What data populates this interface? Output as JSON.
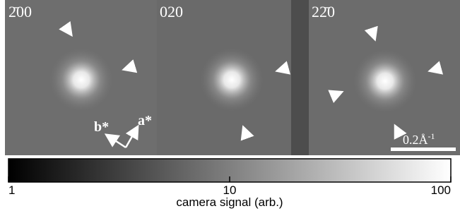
{
  "panels": [
    {
      "label": "2̄00"
    },
    {
      "label": "020"
    },
    {
      "label": "22̄0"
    }
  ],
  "axes": {
    "b": "b*",
    "a": "a*"
  },
  "scale_bar": {
    "text": "0.2Å",
    "sup": "-1"
  },
  "colorbar": {
    "label": "camera signal (arb.)",
    "scale": "log",
    "lim": [
      1,
      100
    ],
    "ticks": [
      1,
      10,
      100
    ]
  }
}
